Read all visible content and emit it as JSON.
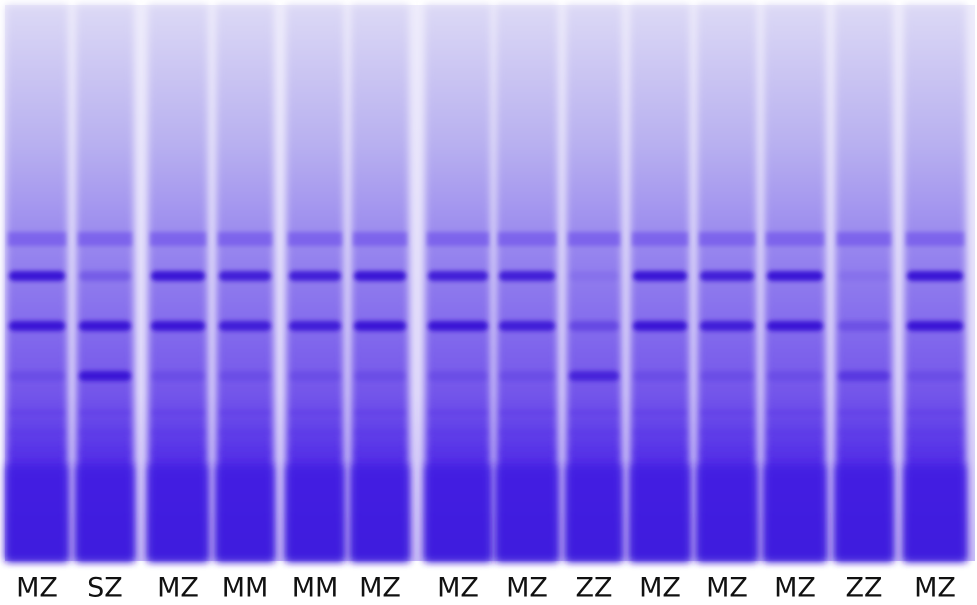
{
  "lanes": [
    {
      "label": "MZ"
    },
    {
      "label": "SZ"
    },
    {
      "label": "MZ"
    },
    {
      "label": "MM"
    },
    {
      "label": "MM"
    },
    {
      "label": "MZ"
    },
    {
      "label": "MZ"
    },
    {
      "label": "MZ"
    },
    {
      "label": "ZZ"
    },
    {
      "label": "MZ"
    },
    {
      "label": "MZ"
    },
    {
      "label": "MZ"
    },
    {
      "label": "ZZ"
    },
    {
      "label": "MZ"
    }
  ]
}
